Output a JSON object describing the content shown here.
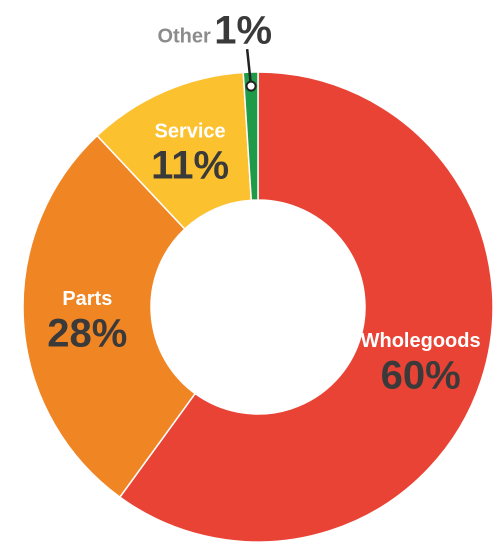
{
  "chart_data": {
    "type": "donut",
    "categories": [
      "Wholegoods",
      "Parts",
      "Service",
      "Other"
    ],
    "values": [
      60,
      28,
      11,
      1
    ],
    "value_labels": [
      "60%",
      "28%",
      "11%",
      "1%"
    ],
    "colors": [
      "#e94335",
      "#f08524",
      "#fbc12f",
      "#1e9a48"
    ]
  }
}
